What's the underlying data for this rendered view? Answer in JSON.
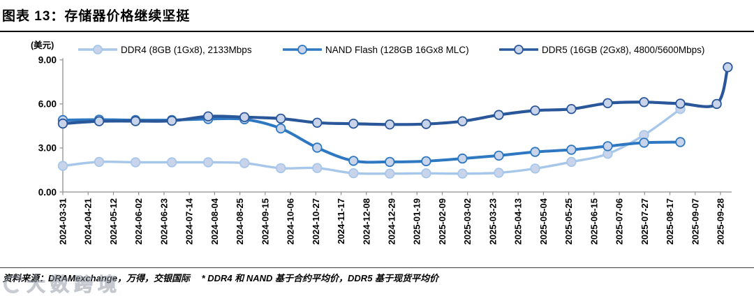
{
  "title": "图表 13：存储器价格继续坚挺",
  "y_axis_unit": "(美元)",
  "footer": {
    "text": "资料来源：DRAMexchange，万得，交银国际　 * DDR4 和 NAND 基于合约平均价，DDR5 基于现货平均价"
  },
  "watermark": {
    "text": "大数跨境"
  },
  "colors": {
    "ddr4": "#A7C7EA",
    "nand": "#2E78C2",
    "ddr5": "#2A579A",
    "marker_fill": "#C9D4EA",
    "axis": "#8F8F8F",
    "text": "#000000"
  },
  "chart_data": {
    "type": "line",
    "title": "存储器价格继续坚挺",
    "xlabel": "",
    "ylabel": "(美元)",
    "ylim": [
      0,
      9
    ],
    "grid": false,
    "legend_position": "top",
    "yticks": [
      {
        "label": "0.00",
        "value": 0
      },
      {
        "label": "3.00",
        "value": 3
      },
      {
        "label": "6.00",
        "value": 6
      },
      {
        "label": "9.00",
        "value": 9
      }
    ],
    "x_labels": [
      "2024-03-31",
      "2024-04-21",
      "2024-05-12",
      "2024-06-02",
      "2024-06-23",
      "2024-07-14",
      "2024-08-04",
      "2024-08-25",
      "2024-09-15",
      "2024-10-06",
      "2024-10-27",
      "2024-11-17",
      "2024-12-08",
      "2024-12-29",
      "2025-01-19",
      "2025-02-09",
      "2025-03-02",
      "2025-03-23",
      "2025-04-13",
      "2025-05-04",
      "2025-05-25",
      "2025-06-15",
      "2025-07-06",
      "2025-07-27",
      "2025-08-17",
      "2025-09-07",
      "2025-09-28"
    ],
    "series": [
      {
        "name": "DDR4 (8GB (1Gx8), 2133Mbps",
        "color_key": "ddr4",
        "line_width": 3.4,
        "x": [
          0.0,
          0.0552,
          0.1105,
          0.1657,
          0.221,
          0.2762,
          0.3314,
          0.3867,
          0.4419,
          0.4971,
          0.5524,
          0.6076,
          0.6629,
          0.7181,
          0.7733,
          0.8286,
          0.8838,
          0.939
        ],
        "values": [
          1.78,
          2.05,
          2.02,
          2.02,
          2.02,
          1.97,
          1.62,
          1.63,
          1.28,
          1.25,
          1.27,
          1.25,
          1.31,
          1.6,
          2.05,
          2.6,
          3.88,
          5.65
        ]
      },
      {
        "name": "NAND Flash (128GB 16Gx8 MLC)",
        "color_key": "nand",
        "line_width": 4.0,
        "x": [
          0.0,
          0.0552,
          0.1105,
          0.1657,
          0.221,
          0.2762,
          0.3314,
          0.3867,
          0.4419,
          0.4971,
          0.5524,
          0.6076,
          0.6629,
          0.7181,
          0.7733,
          0.8286,
          0.8838,
          0.939
        ],
        "values": [
          4.9,
          4.93,
          4.9,
          4.9,
          4.97,
          4.95,
          4.33,
          3.02,
          2.12,
          2.05,
          2.1,
          2.28,
          2.48,
          2.73,
          2.88,
          3.12,
          3.36,
          3.4
        ]
      },
      {
        "name": "DDR5 (16GB (2Gx8), 4800/5600Mbps)",
        "color_key": "ddr5",
        "line_width": 4.2,
        "x": [
          0.0,
          0.0552,
          0.1105,
          0.1657,
          0.221,
          0.2762,
          0.3314,
          0.3867,
          0.4419,
          0.4971,
          0.5524,
          0.6076,
          0.6629,
          0.7181,
          0.7733,
          0.8286,
          0.8838,
          0.939,
          0.9943,
          1.011
        ],
        "values": [
          4.66,
          4.82,
          4.83,
          4.85,
          5.15,
          5.1,
          5.0,
          4.72,
          4.65,
          4.6,
          4.63,
          4.82,
          5.25,
          5.55,
          5.65,
          6.05,
          6.12,
          6.02,
          6.0,
          8.5
        ]
      }
    ]
  }
}
